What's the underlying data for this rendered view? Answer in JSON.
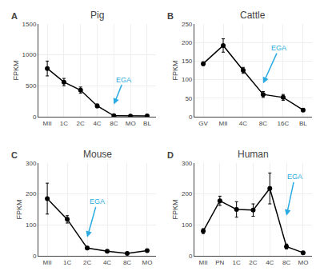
{
  "chart_data": [
    {
      "type": "line",
      "title": "Pig",
      "label": "A",
      "categories": [
        "MII",
        "1C",
        "2C",
        "4C",
        "8C",
        "MO",
        "BL"
      ],
      "values": [
        780,
        560,
        430,
        175,
        15,
        10,
        12
      ],
      "errors": [
        120,
        60,
        50,
        30,
        8,
        4,
        4
      ],
      "ylabel": "FPKM",
      "ylim": [
        0,
        1500
      ],
      "yticks": [
        0,
        500,
        1000,
        1500
      ],
      "color": "black",
      "marker": "circle",
      "annotations": [
        {
          "text": "EGA",
          "x": 4,
          "y": 200,
          "text_x": 4.6,
          "text_y": 600,
          "color": "#29ABE2"
        }
      ]
    },
    {
      "type": "line",
      "title": "Cattle",
      "label": "B",
      "categories": [
        "GV",
        "MII",
        "4C",
        "8C",
        "16C",
        "BL"
      ],
      "values": [
        143,
        192,
        125,
        60,
        52,
        18
      ],
      "errors": [
        5,
        18,
        8,
        8,
        8,
        4
      ],
      "ylabel": "FPKM",
      "ylim": [
        0,
        250
      ],
      "yticks": [
        0,
        50,
        100,
        150,
        200,
        250
      ],
      "color": "black",
      "marker": "circle",
      "annotations": [
        {
          "text": "EGA",
          "x": 3,
          "y": 90,
          "text_x": 3.8,
          "text_y": 185,
          "color": "#29ABE2"
        }
      ]
    },
    {
      "type": "line",
      "title": "Mouse",
      "label": "C",
      "categories": [
        "MII",
        "1C",
        "2C",
        "4C",
        "8C",
        "MO"
      ],
      "values": [
        185,
        118,
        25,
        15,
        8,
        17
      ],
      "errors": [
        50,
        12,
        5,
        4,
        3,
        4
      ],
      "ylabel": "FPKM",
      "ylim": [
        0,
        300
      ],
      "yticks": [
        0,
        100,
        200,
        300
      ],
      "color": "black",
      "marker": "circle",
      "annotations": [
        {
          "text": "EGA",
          "x": 2,
          "y": 60,
          "text_x": 2.5,
          "text_y": 175,
          "color": "#29ABE2"
        }
      ]
    },
    {
      "type": "line",
      "title": "Human",
      "label": "D",
      "categories": [
        "MII",
        "PN",
        "1C",
        "2C",
        "4C",
        "8C",
        "MO"
      ],
      "values": [
        80,
        178,
        150,
        148,
        218,
        30,
        10
      ],
      "errors": [
        8,
        15,
        25,
        20,
        50,
        8,
        4
      ],
      "ylabel": "FPKM",
      "ylim": [
        0,
        300
      ],
      "yticks": [
        0,
        100,
        200,
        300
      ],
      "color": "black",
      "marker": "circle",
      "annotations": [
        {
          "text": "EGA",
          "x": 5,
          "y": 130,
          "text_x": 5.5,
          "text_y": 255,
          "color": "#29ABE2"
        }
      ]
    }
  ]
}
